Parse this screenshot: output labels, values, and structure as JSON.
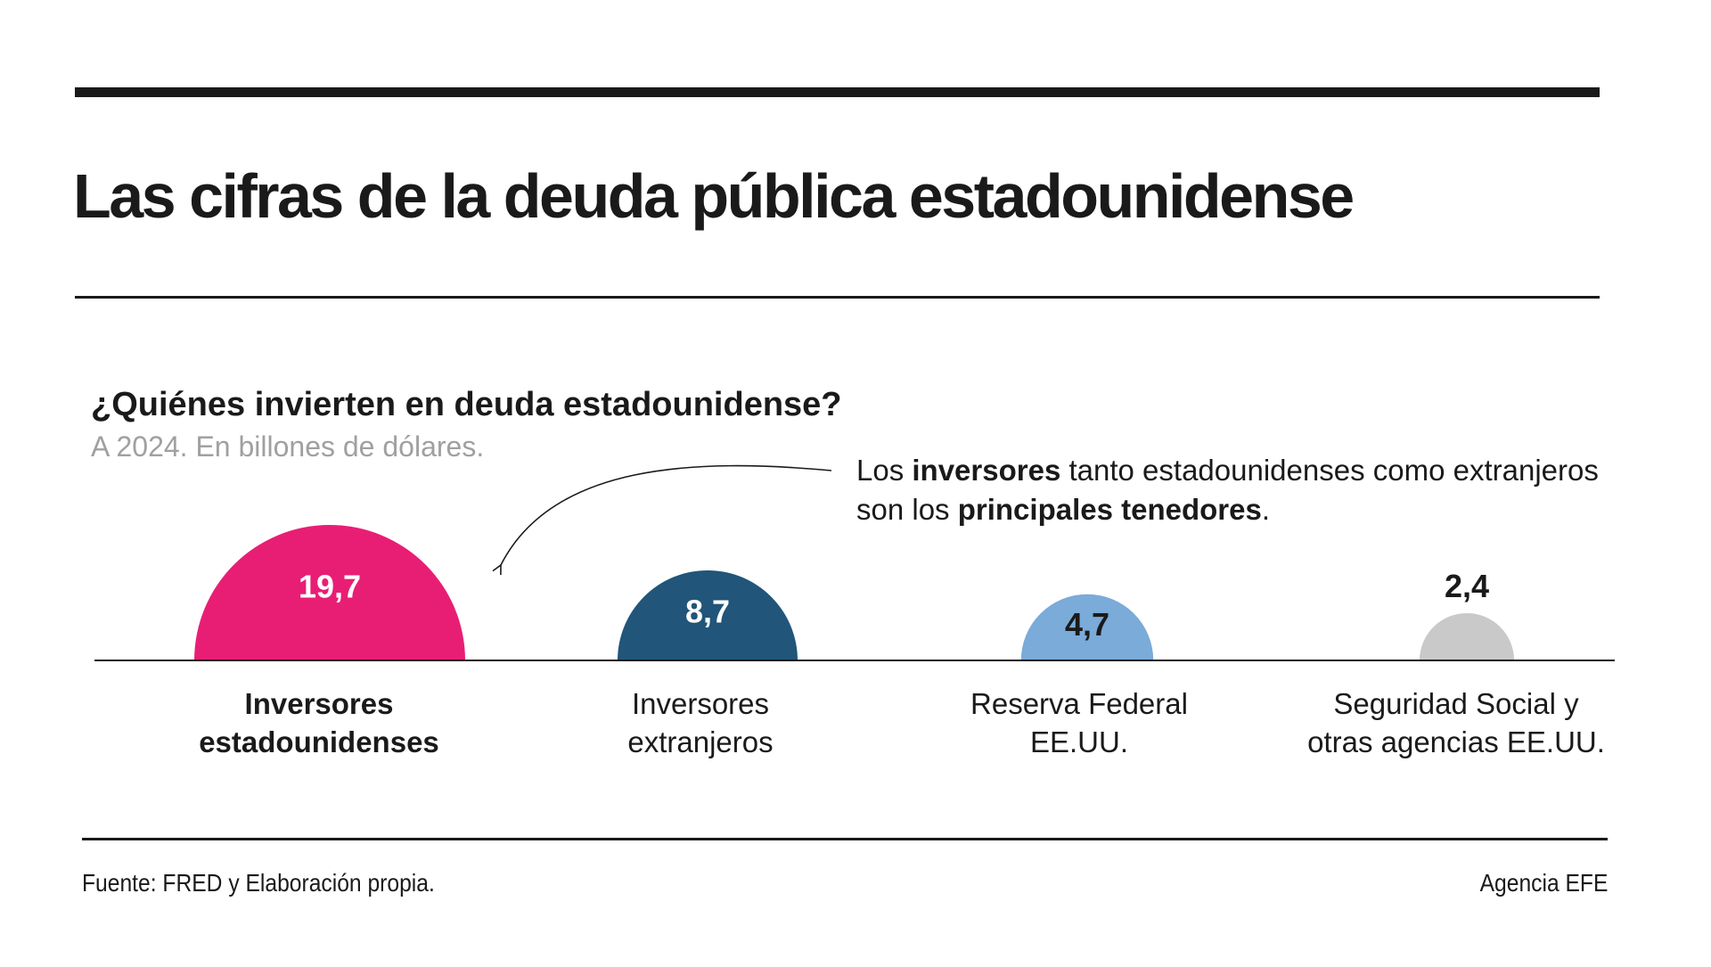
{
  "title": "Las cifras de la deuda pública estadounidense",
  "subtitle": "¿Quiénes invierten en deuda estadounidense?",
  "unit_note": "A 2024. En billones de dólares.",
  "annotation": {
    "p1": "Los ",
    "b1": "inversores",
    "p2": " tanto estadounidenses como extranjeros son los ",
    "b2": "principales tenedores",
    "p3": "."
  },
  "footer": {
    "source": "Fuente: FRED y Elaboración propia.",
    "credit": "Agencia EFE"
  },
  "chart_data": {
    "type": "bar",
    "mark": "proportional-semicircle",
    "unit": "billones de dólares",
    "categories": [
      {
        "lines": [
          "Inversores",
          "estadounidenses"
        ],
        "bold": true
      },
      {
        "lines": [
          "Inversores",
          "extranjeros"
        ],
        "bold": false
      },
      {
        "lines": [
          "Reserva Federal",
          "EE.UU."
        ],
        "bold": false
      },
      {
        "lines": [
          "Seguridad Social y",
          "otras agencias EE.UU."
        ],
        "bold": false
      }
    ],
    "values": [
      19.7,
      8.7,
      4.7,
      2.4
    ],
    "value_labels": [
      "19,7",
      "8,7",
      "4,7",
      "2,4"
    ],
    "colors": [
      "#e81e75",
      "#215579",
      "#7aabd9",
      "#c9c9c9"
    ],
    "label_colors": [
      "#ffffff",
      "#ffffff",
      "#1a1a1a",
      "#1a1a1a"
    ],
    "label_outside": [
      false,
      false,
      false,
      true
    ],
    "baseline_color": "#1a1a1a"
  }
}
